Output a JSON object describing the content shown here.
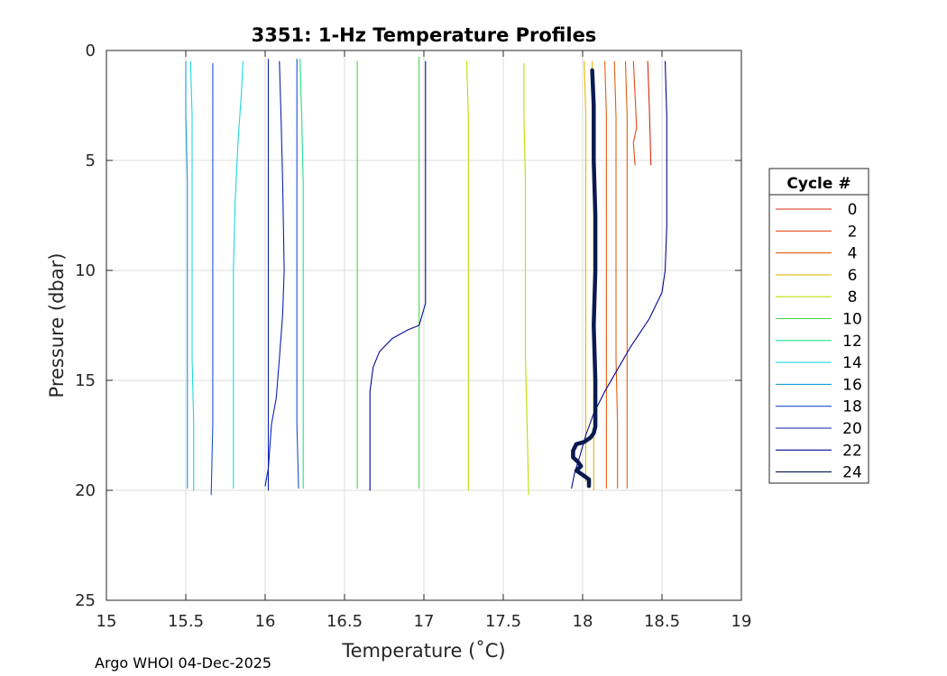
{
  "chart_data": {
    "type": "line",
    "title": "3351: 1-Hz Temperature Profiles",
    "xlabel": "Temperature (˚C)",
    "ylabel": "Pressure (dbar)",
    "xlim": [
      15,
      19
    ],
    "ylim": [
      0,
      25
    ],
    "y_reversed": true,
    "grid": true,
    "x_ticks": [
      15,
      15.5,
      16,
      16.5,
      17,
      17.5,
      18,
      18.5,
      19
    ],
    "x_tick_labels": [
      "15",
      "15.5",
      "16",
      "16.5",
      "17",
      "17.5",
      "18",
      "18.5",
      "19"
    ],
    "y_ticks": [
      0,
      5,
      10,
      15,
      20,
      25
    ],
    "y_tick_labels": [
      "0",
      "5",
      "10",
      "15",
      "20",
      "25"
    ],
    "legend": {
      "title": "Cycle #",
      "placement": "outside-right",
      "entries": [
        "0",
        "2",
        "4",
        "6",
        "8",
        "10",
        "12",
        "14",
        "16",
        "18",
        "20",
        "22",
        "24"
      ]
    },
    "series": [
      {
        "name": "0",
        "color": "#d42a10",
        "x": [
          18.41,
          18.42,
          18.43
        ],
        "y": [
          0.5,
          2.5,
          5.2
        ]
      },
      {
        "name": "2",
        "color": "#e64a19",
        "x": [
          18.32,
          18.33,
          18.34,
          18.32,
          18.33
        ],
        "y": [
          0.5,
          2,
          3.5,
          4.2,
          5.2
        ]
      },
      {
        "name": "4",
        "color": "#e06010",
        "x": [
          18.27,
          18.28,
          18.28,
          18.28,
          18.28,
          18.28,
          18.28
        ],
        "y": [
          0.5,
          3,
          6,
          10,
          14,
          17,
          19.9
        ]
      },
      {
        "name": "4",
        "color": "#e06010",
        "x": [
          18.2,
          18.21,
          18.21,
          18.21,
          18.21,
          18.22,
          18.22
        ],
        "y": [
          0.5,
          3,
          6,
          10,
          14,
          17,
          19.9
        ]
      },
      {
        "name": "4",
        "color": "#e06010",
        "x": [
          18.14,
          18.15,
          18.15,
          18.15,
          18.15,
          18.15,
          18.15
        ],
        "y": [
          0.5,
          3,
          6,
          10,
          14,
          17,
          19.9
        ]
      },
      {
        "name": "6",
        "color": "#e8b800",
        "x": [
          18.06,
          18.06,
          18.07,
          18.07,
          18.07,
          18.07,
          18.07
        ],
        "y": [
          0.5,
          3,
          6,
          10,
          14,
          17,
          20.0
        ]
      },
      {
        "name": "6",
        "color": "#e8b800",
        "x": [
          18.01,
          18.02,
          18.02,
          18.02,
          18.02,
          18.02,
          18.02
        ],
        "y": [
          0.5,
          3,
          6,
          10,
          14,
          17,
          19.6
        ]
      },
      {
        "name": "8",
        "color": "#b8e000",
        "x": [
          17.63,
          17.63,
          17.64,
          17.64,
          17.64,
          17.65,
          17.66
        ],
        "y": [
          0.6,
          3,
          6,
          10,
          14,
          17,
          20.2
        ]
      },
      {
        "name": "8",
        "color": "#b8e000",
        "x": [
          17.27,
          17.28,
          17.28,
          17.28,
          17.28,
          17.28,
          17.28
        ],
        "y": [
          0.5,
          3,
          6,
          10,
          14,
          17,
          20.0
        ]
      },
      {
        "name": "10",
        "color": "#4cd44c",
        "x": [
          16.97,
          16.97,
          16.97,
          16.97,
          16.97,
          16.97,
          16.97
        ],
        "y": [
          0.3,
          3,
          6,
          10,
          14,
          17,
          19.9
        ]
      },
      {
        "name": "10",
        "color": "#4cd44c",
        "x": [
          16.58,
          16.58,
          16.58,
          16.58,
          16.58,
          16.58,
          16.58
        ],
        "y": [
          0.5,
          3,
          6,
          10,
          14,
          17,
          19.9
        ]
      },
      {
        "name": "12",
        "color": "#20e090",
        "x": [
          16.22,
          16.23,
          16.24,
          16.24,
          16.24,
          16.24,
          16.24
        ],
        "y": [
          0.4,
          3,
          6,
          10,
          14,
          17,
          19.9
        ]
      },
      {
        "name": "14",
        "color": "#1ad8e0",
        "x": [
          15.86,
          15.85,
          15.83,
          15.81,
          15.8,
          15.8,
          15.8,
          15.8
        ],
        "y": [
          0.5,
          2,
          4,
          7,
          10,
          14,
          17,
          19.9
        ]
      },
      {
        "name": "14",
        "color": "#1ad8e0",
        "x": [
          15.53,
          15.54,
          15.54,
          15.54,
          15.54,
          15.55,
          15.55
        ],
        "y": [
          0.5,
          3,
          6,
          10,
          14,
          17,
          20.0
        ]
      },
      {
        "name": "16",
        "color": "#1a9ad8",
        "x": [
          15.5,
          15.5,
          15.51,
          15.51,
          15.51,
          15.51,
          15.51
        ],
        "y": [
          0.5,
          3,
          6,
          10,
          14,
          17,
          19.9
        ]
      },
      {
        "name": "18",
        "color": "#1a50d0",
        "x": [
          15.67,
          15.67,
          15.67,
          15.67,
          15.67,
          15.67,
          15.66
        ],
        "y": [
          0.6,
          3,
          6,
          10,
          14,
          17,
          20.2
        ]
      },
      {
        "name": "18",
        "color": "#1a50d0",
        "x": [
          16.2,
          16.2,
          16.2,
          16.2,
          16.2,
          16.2,
          16.21
        ],
        "y": [
          0.4,
          3,
          6,
          10,
          14,
          17,
          19.9
        ]
      },
      {
        "name": "20",
        "color": "#0a24b0",
        "x": [
          16.02,
          16.02,
          16.02,
          16.02,
          16.02,
          16.02,
          16.02
        ],
        "y": [
          0.4,
          3,
          6,
          10,
          14,
          17,
          20.0
        ]
      },
      {
        "name": "20",
        "color": "#0a24b0",
        "x": [
          16.09,
          16.1,
          16.11,
          16.12,
          16.11,
          16.09,
          16.07,
          16.04,
          16.03,
          16.02,
          16.0
        ],
        "y": [
          0.5,
          3,
          6,
          10,
          12,
          14,
          15.8,
          17,
          18,
          19,
          19.8
        ]
      },
      {
        "name": "22",
        "color": "#050890",
        "x": [
          17.01,
          17.01,
          17.01,
          17.01,
          16.97,
          16.9,
          16.8,
          16.72,
          16.68,
          16.66,
          16.66,
          16.66,
          16.66
        ],
        "y": [
          0.5,
          4,
          8,
          11.5,
          12.5,
          12.7,
          13.1,
          13.7,
          14.4,
          15.5,
          17,
          18.5,
          20.0
        ]
      },
      {
        "name": "22",
        "color": "#050890",
        "x": [
          18.52,
          18.53,
          18.53,
          18.53,
          18.52,
          18.5,
          18.42,
          18.3,
          18.22,
          18.14,
          18.07,
          18.02,
          17.98,
          17.95,
          17.93
        ],
        "y": [
          0.5,
          3,
          5,
          8,
          10,
          11,
          12.2,
          13.5,
          14.5,
          15.5,
          16.5,
          17.5,
          18.5,
          19.2,
          19.9
        ]
      },
      {
        "name": "24",
        "color": "#0a1a50",
        "x": [
          18.06,
          18.07,
          18.07,
          18.08,
          18.08,
          18.07,
          18.08,
          18.08,
          18.08,
          18.07,
          18.05,
          18.01,
          17.96,
          17.94,
          17.94,
          17.97,
          17.99,
          17.96,
          18.0,
          18.04,
          18.04
        ],
        "y": [
          0.9,
          2.5,
          5,
          7.5,
          10,
          12.5,
          15,
          16.5,
          17.1,
          17.4,
          17.6,
          17.8,
          17.9,
          18.2,
          18.5,
          18.7,
          18.9,
          19.1,
          19.3,
          19.5,
          19.8
        ]
      }
    ],
    "footer": "Argo WHOI 04-Dec-2025"
  }
}
